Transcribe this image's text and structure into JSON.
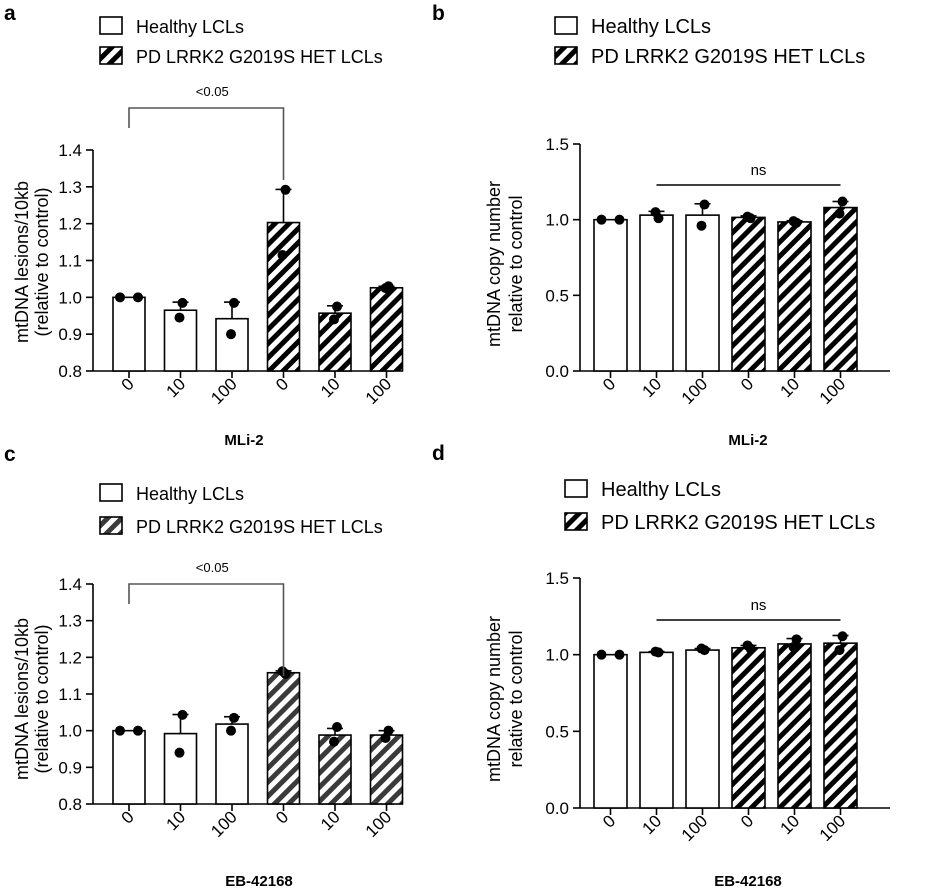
{
  "legend": {
    "healthy": "Healthy LCLs",
    "pd": "PD LRRK2 G2019S HET LCLs"
  },
  "chart_data": [
    {
      "panel": "a",
      "type": "bar",
      "ylabel": [
        "mtDNA lesions/10kb",
        "(relative to control)"
      ],
      "xlabel": "MLi-2",
      "categories": [
        "0",
        "10",
        "100",
        "0",
        "10",
        "100"
      ],
      "groups": [
        "healthy",
        "healthy",
        "healthy",
        "pd",
        "pd",
        "pd"
      ],
      "values": [
        1.0,
        0.965,
        0.942,
        1.203,
        0.957,
        1.026
      ],
      "errors": [
        0.0,
        0.022,
        0.045,
        0.09,
        0.02,
        0.004
      ],
      "points": [
        [
          1.0,
          1.0
        ],
        [
          0.985,
          0.945
        ],
        [
          0.985,
          0.9
        ],
        [
          1.292,
          1.115
        ],
        [
          0.975,
          0.94
        ],
        [
          1.03,
          1.025
        ]
      ],
      "ylim": [
        0.8,
        1.4
      ],
      "yticks": [
        "0.8",
        "0.9",
        "1.0",
        "1.1",
        "1.2",
        "1.3",
        "1.4"
      ],
      "yticks_values": [
        0.8,
        0.9,
        1.0,
        1.1,
        1.2,
        1.3,
        1.4
      ],
      "annotation": {
        "text": "<0.05",
        "from": 0,
        "to": 3,
        "kind": "bracket"
      }
    },
    {
      "panel": "b",
      "type": "bar",
      "ylabel": [
        "mtDNA copy number",
        "relative to control"
      ],
      "xlabel": "MLi-2",
      "categories": [
        "0",
        "10",
        "100",
        "0",
        "10",
        "100"
      ],
      "groups": [
        "healthy",
        "healthy",
        "healthy",
        "pd",
        "pd",
        "pd"
      ],
      "values": [
        1.0,
        1.03,
        1.03,
        1.015,
        0.985,
        1.08
      ],
      "errors": [
        0.0,
        0.025,
        0.075,
        0.01,
        0.008,
        0.04
      ],
      "points": [
        [
          1.0,
          1.0
        ],
        [
          1.01,
          1.05
        ],
        [
          1.1,
          0.96
        ],
        [
          1.01,
          1.02
        ],
        [
          0.98,
          0.99
        ],
        [
          1.12,
          1.04
        ]
      ],
      "ylim": [
        0.0,
        1.5
      ],
      "yticks": [
        "0.0",
        "0.5",
        "1.0",
        "1.5"
      ],
      "yticks_values": [
        0.0,
        0.5,
        1.0,
        1.5
      ],
      "annotation": {
        "text": "ns",
        "from": 1,
        "to": 5,
        "kind": "line"
      }
    },
    {
      "panel": "c",
      "type": "bar",
      "ylabel": [
        "mtDNA lesions/10kb",
        "(relative to control)"
      ],
      "xlabel": "EB-42168",
      "categories": [
        "0",
        "10",
        "100",
        "0",
        "10",
        "100"
      ],
      "groups": [
        "healthy",
        "healthy",
        "healthy",
        "pd",
        "pd",
        "pd"
      ],
      "values": [
        1.0,
        0.992,
        1.018,
        1.158,
        0.988,
        0.988
      ],
      "errors": [
        0.0,
        0.052,
        0.02,
        0.005,
        0.018,
        0.012
      ],
      "points": [
        [
          1.0,
          1.0
        ],
        [
          1.043,
          0.94
        ],
        [
          1.035,
          1.0
        ],
        [
          1.155,
          1.162
        ],
        [
          1.01,
          0.97
        ],
        [
          1.0,
          0.98
        ]
      ],
      "ylim": [
        0.8,
        1.4
      ],
      "yticks": [
        "0.8",
        "0.9",
        "1.0",
        "1.1",
        "1.2",
        "1.3",
        "1.4"
      ],
      "yticks_values": [
        0.8,
        0.9,
        1.0,
        1.1,
        1.2,
        1.3,
        1.4
      ],
      "annotation": {
        "text": "<0.05",
        "from": 0,
        "to": 3,
        "kind": "bracket"
      }
    },
    {
      "panel": "d",
      "type": "bar",
      "ylabel": [
        "mtDNA copy number",
        "relative to control"
      ],
      "xlabel": "EB-42168",
      "categories": [
        "0",
        "10",
        "100",
        "0",
        "10",
        "100"
      ],
      "groups": [
        "healthy",
        "healthy",
        "healthy",
        "pd",
        "pd",
        "pd"
      ],
      "values": [
        1.0,
        1.015,
        1.03,
        1.045,
        1.07,
        1.075
      ],
      "errors": [
        0.0,
        0.005,
        0.01,
        0.015,
        0.035,
        0.05
      ],
      "points": [
        [
          1.0,
          1.0
        ],
        [
          1.015,
          1.02
        ],
        [
          1.03,
          1.04
        ],
        [
          1.04,
          1.06
        ],
        [
          1.1,
          1.05
        ],
        [
          1.12,
          1.03
        ]
      ],
      "ylim": [
        0.0,
        1.5
      ],
      "yticks": [
        "0.0",
        "0.5",
        "1.0",
        "1.5"
      ],
      "yticks_values": [
        0.0,
        0.5,
        1.0,
        1.5
      ],
      "annotation": {
        "text": "ns",
        "from": 1,
        "to": 5,
        "kind": "line"
      }
    }
  ],
  "colors": {
    "bar_edge": "#000000",
    "healthy_fill": "#ffffff",
    "pd_hatch": "#000000",
    "bracket": "#555555"
  }
}
